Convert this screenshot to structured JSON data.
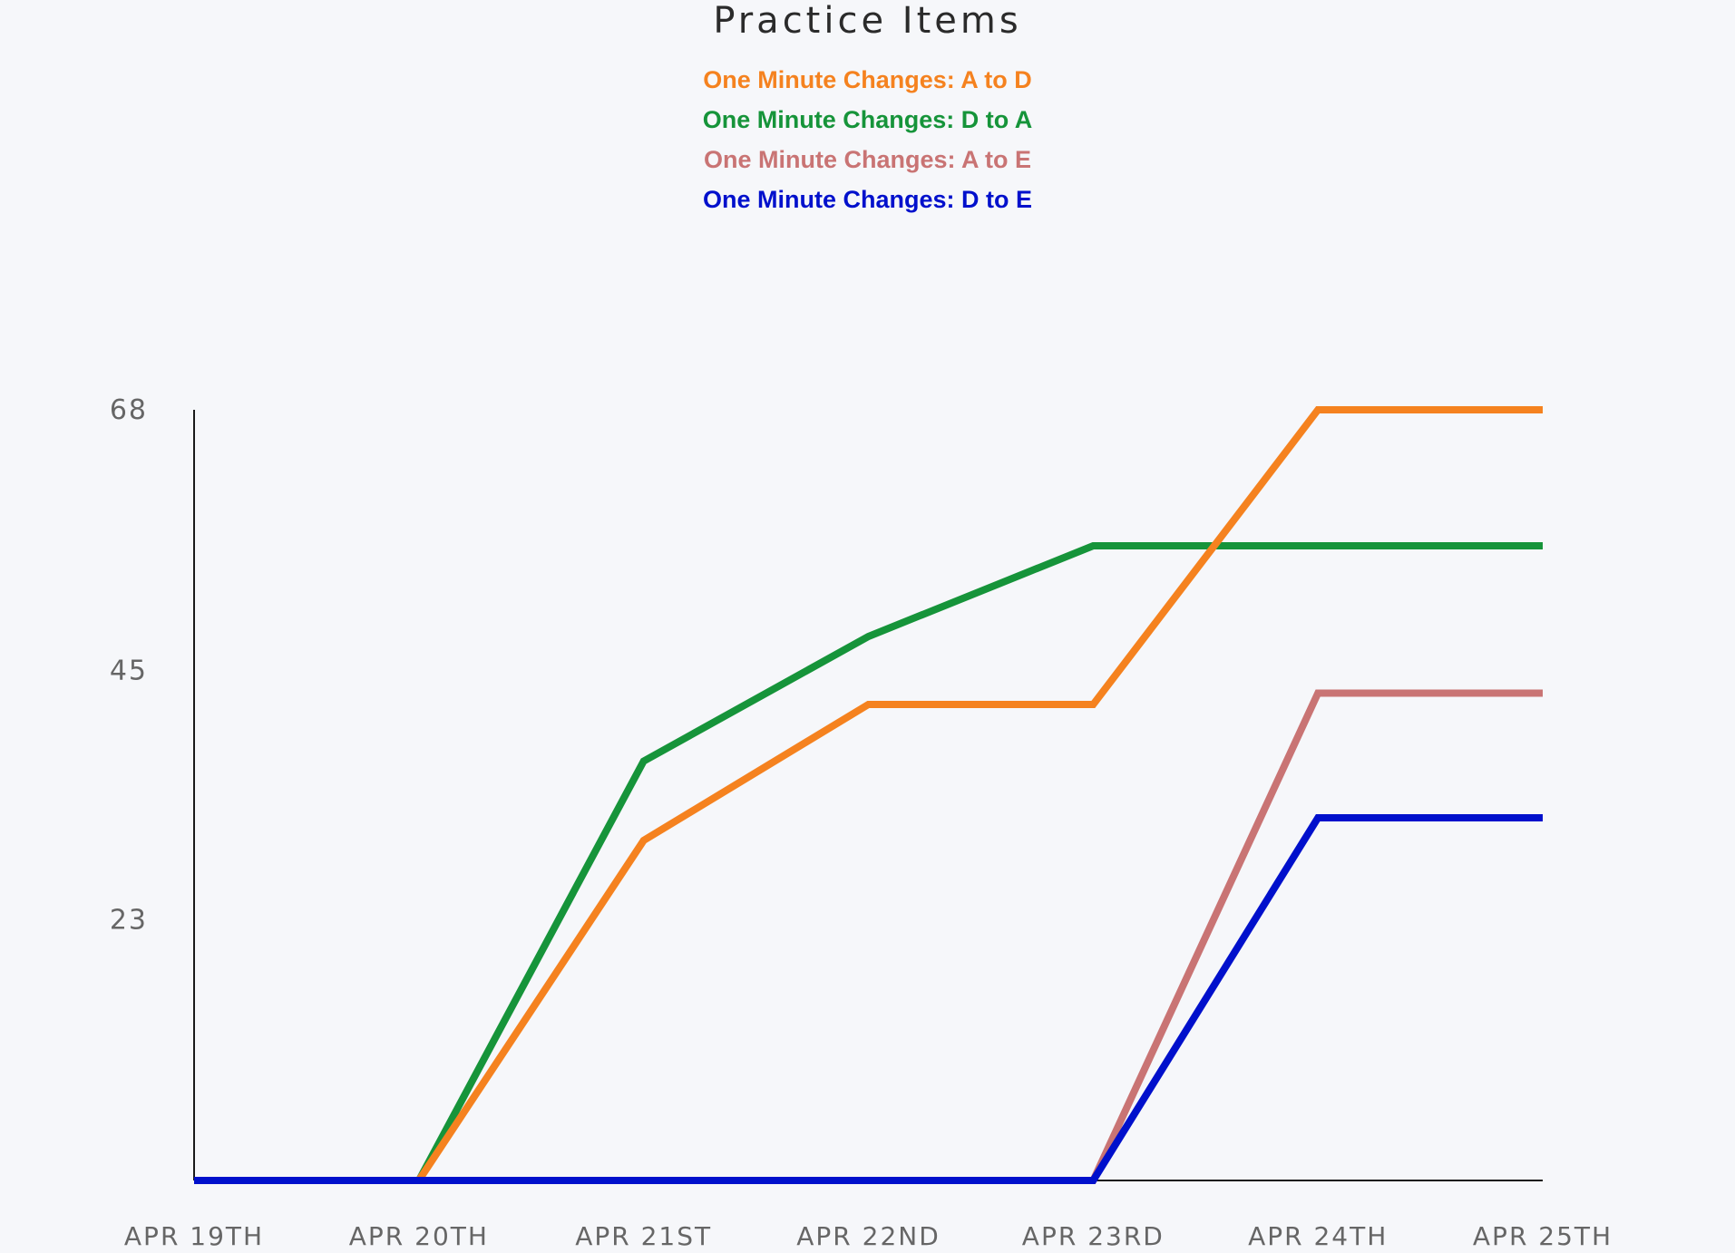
{
  "chart_data": {
    "type": "line",
    "title": "Practice Items",
    "categories": [
      "APR 19TH",
      "APR 20TH",
      "APR 21ST",
      "APR 22ND",
      "APR 23RD",
      "APR 24TH",
      "APR 25TH"
    ],
    "yticks": [
      23,
      45,
      68
    ],
    "ylim": [
      0,
      68
    ],
    "grid": false,
    "legend_position": "top-center",
    "series": [
      {
        "name": "One Minute Changes: A to D",
        "color": "#f5821f",
        "values": [
          0,
          0,
          30,
          42,
          42,
          68,
          68
        ],
        "width": 8
      },
      {
        "name": "One Minute Changes: D to A",
        "color": "#16943a",
        "values": [
          0,
          0,
          37,
          48,
          56,
          56,
          56
        ],
        "width": 8
      },
      {
        "name": "One Minute Changes: A to E",
        "color": "#c97474",
        "values": [
          0,
          0,
          0,
          0,
          0,
          43,
          43
        ],
        "width": 8
      },
      {
        "name": "One Minute Changes: D to E",
        "color": "#0010cc",
        "values": [
          0,
          0,
          0,
          0,
          0,
          32,
          32
        ],
        "width": 8
      }
    ],
    "colors": {
      "axis": "#1a1a1a",
      "tick_text": "#666666",
      "title_text": "#2b2b2b"
    }
  }
}
